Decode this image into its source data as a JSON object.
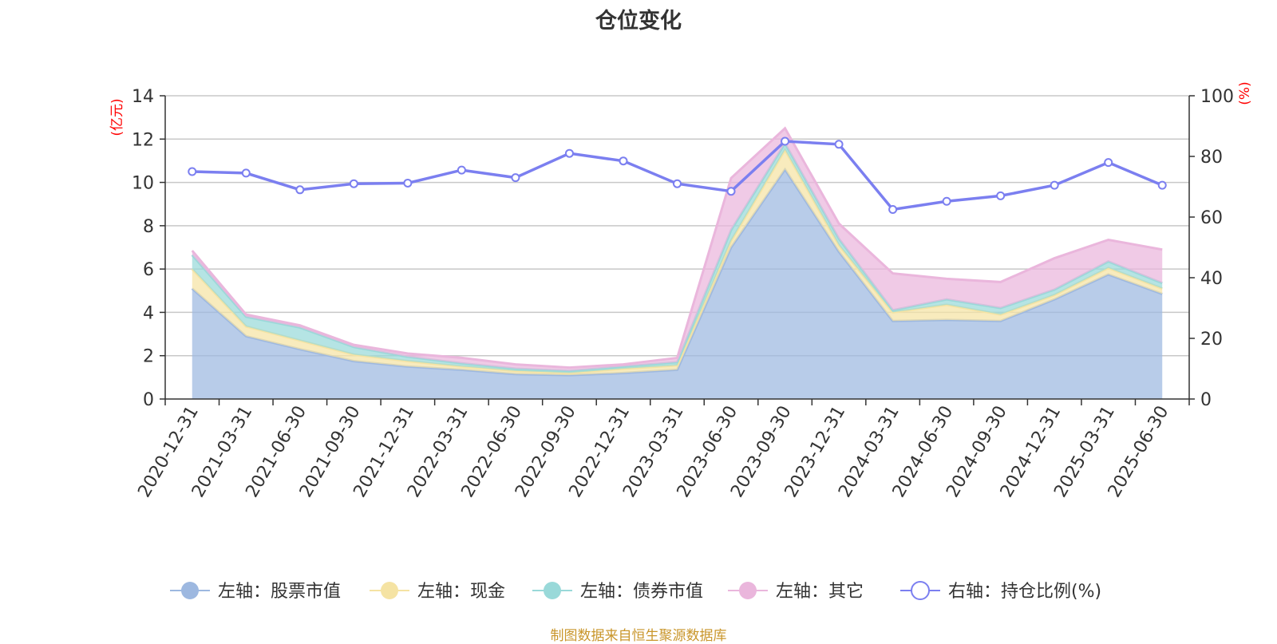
{
  "chart_data": {
    "type": "area",
    "title": "仓位变化",
    "x": [
      "2020-12-31",
      "2021-03-31",
      "2021-06-30",
      "2021-09-30",
      "2021-12-31",
      "2022-03-31",
      "2022-06-30",
      "2022-09-30",
      "2022-12-31",
      "2023-03-31",
      "2023-06-30",
      "2023-09-30",
      "2023-12-31",
      "2024-03-31",
      "2024-06-30",
      "2024-09-30",
      "2024-12-31",
      "2025-03-31",
      "2025-06-30"
    ],
    "y_left": {
      "unit": "(亿元)",
      "ylim": [
        0,
        14
      ],
      "ticks": [
        0,
        2,
        4,
        6,
        8,
        10,
        12,
        14
      ]
    },
    "y_right": {
      "unit": "(%)",
      "ylim": [
        0,
        100
      ],
      "ticks": [
        0,
        20,
        40,
        60,
        80,
        100
      ]
    },
    "grid": true,
    "legend_position": "bottom",
    "stacked_series": [
      {
        "name": "左轴：股票市值",
        "axis": "left",
        "color": "#9db8e0",
        "values": [
          5.1,
          2.9,
          2.3,
          1.75,
          1.5,
          1.35,
          1.15,
          1.1,
          1.2,
          1.35,
          7.0,
          10.6,
          6.8,
          3.6,
          3.65,
          3.6,
          4.6,
          5.75,
          4.85
        ]
      },
      {
        "name": "左轴：现金",
        "axis": "left",
        "color": "#f5e3a3",
        "values": [
          0.9,
          0.45,
          0.4,
          0.3,
          0.25,
          0.15,
          0.15,
          0.1,
          0.2,
          0.2,
          0.3,
          0.9,
          0.3,
          0.4,
          0.7,
          0.3,
          0.2,
          0.3,
          0.25
        ]
      },
      {
        "name": "左轴：债券市值",
        "axis": "left",
        "color": "#99d9d9",
        "values": [
          0.65,
          0.45,
          0.6,
          0.35,
          0.2,
          0.15,
          0.1,
          0.1,
          0.1,
          0.15,
          0.5,
          0.3,
          0.3,
          0.1,
          0.25,
          0.3,
          0.25,
          0.3,
          0.25
        ]
      },
      {
        "name": "左轴：其它",
        "axis": "left",
        "color": "#eab6dc",
        "values": [
          0.2,
          0.1,
          0.1,
          0.1,
          0.15,
          0.25,
          0.2,
          0.15,
          0.1,
          0.2,
          2.4,
          0.7,
          0.7,
          1.7,
          0.95,
          1.2,
          1.45,
          1.0,
          1.55
        ]
      }
    ],
    "line_series": {
      "name": "右轴：持仓比例(%)",
      "axis": "right",
      "color": "#7b7ff0",
      "values": [
        75,
        74.5,
        69,
        71,
        71.2,
        75.5,
        73,
        81,
        78.5,
        71,
        68.5,
        85,
        84,
        62.5,
        65.2,
        67,
        70.5,
        78,
        70.5
      ]
    }
  },
  "source_note": "制图数据来自恒生聚源数据库"
}
